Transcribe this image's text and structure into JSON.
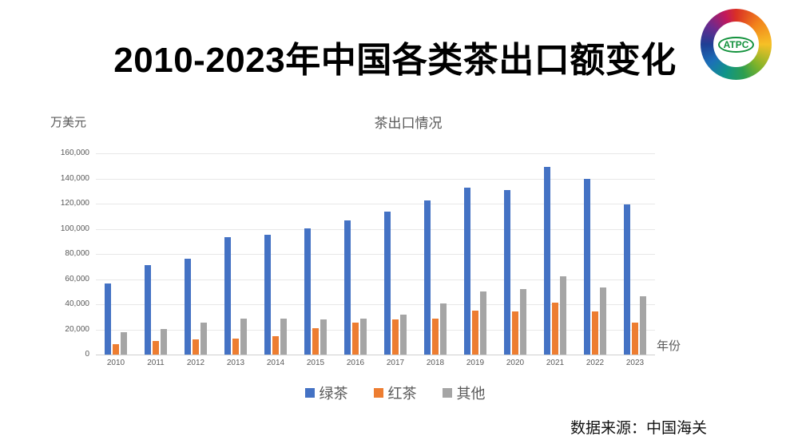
{
  "title": "2010-2023年中国各类茶出口额变化",
  "logo": {
    "text": "ATPC"
  },
  "source": "数据来源：中国海关",
  "chart_data": {
    "type": "bar",
    "title": "茶出口情况",
    "unit_label": "万美元",
    "xlabel": "年份",
    "ylabel": "万美元",
    "ylim": [
      0,
      160000
    ],
    "ytick_step": 20000,
    "grid": true,
    "legend_position": "bottom",
    "categories": [
      "2010",
      "2011",
      "2012",
      "2013",
      "2014",
      "2015",
      "2016",
      "2017",
      "2018",
      "2019",
      "2020",
      "2021",
      "2022",
      "2023"
    ],
    "series": [
      {
        "name": "绿茶",
        "color": "#4472C4",
        "values": [
          56800,
          70900,
          76000,
          93600,
          95400,
          100600,
          106700,
          113700,
          122500,
          132700,
          130900,
          148900,
          140000,
          119600
        ]
      },
      {
        "name": "红茶",
        "color": "#ED7D31",
        "values": [
          8400,
          11100,
          12100,
          13000,
          14700,
          20700,
          25600,
          28000,
          28500,
          35000,
          34400,
          41300,
          34000,
          25700
        ]
      },
      {
        "name": "其他",
        "color": "#A5A5A5",
        "values": [
          17900,
          20300,
          25200,
          28300,
          28500,
          27900,
          28500,
          31900,
          40400,
          50000,
          52300,
          62400,
          53600,
          46300
        ]
      }
    ],
    "colors": {
      "green_tea": "#4472C4",
      "black_tea": "#ED7D31",
      "other": "#A5A5A5"
    }
  }
}
